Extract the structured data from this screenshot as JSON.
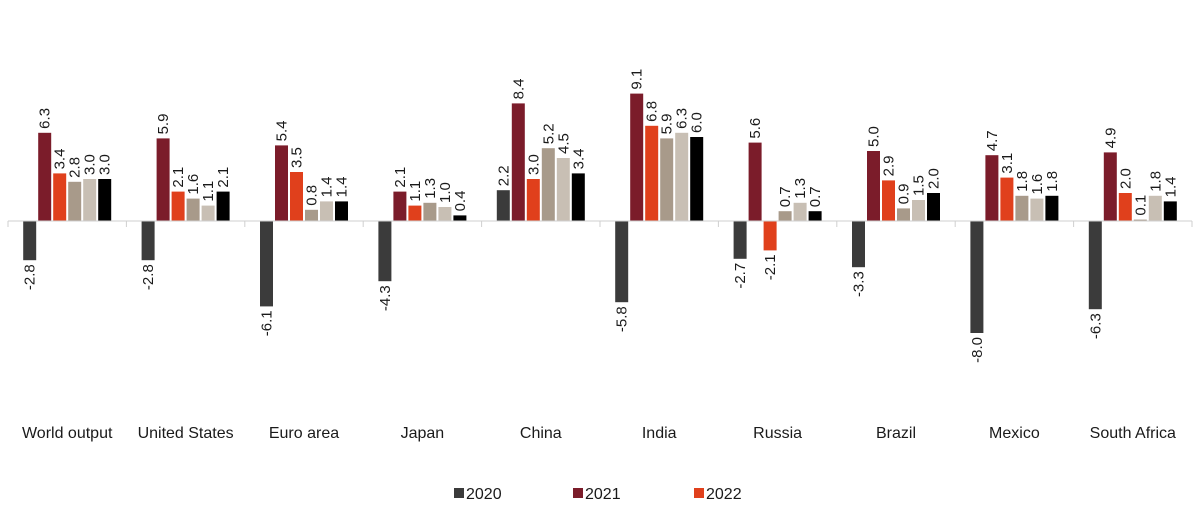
{
  "chart_data": {
    "type": "bar",
    "title": "",
    "xlabel": "",
    "ylabel": "",
    "ylim": [
      -8.5,
      9.5
    ],
    "grid": false,
    "legend_position": "bottom",
    "categories": [
      "World output",
      "United States",
      "Euro area",
      "Japan",
      "China",
      "India",
      "Russia",
      "Brazil",
      "Mexico",
      "South Africa"
    ],
    "series": [
      {
        "name": "2020",
        "color": "#3b3b3b",
        "values": [
          -2.8,
          -2.8,
          -6.1,
          -4.3,
          2.2,
          -5.8,
          -2.7,
          -3.3,
          -8.0,
          -6.3
        ]
      },
      {
        "name": "2021",
        "color": "#7b1c2a",
        "values": [
          6.3,
          5.9,
          5.4,
          2.1,
          8.4,
          9.1,
          5.6,
          5.0,
          4.7,
          4.9
        ]
      },
      {
        "name": "2022",
        "color": "#e0401c",
        "values": [
          3.4,
          2.1,
          3.5,
          1.1,
          3.0,
          6.8,
          -2.1,
          2.9,
          3.1,
          2.0
        ]
      },
      {
        "color": "#a89a8a",
        "values": [
          2.8,
          1.6,
          0.8,
          1.3,
          5.2,
          5.9,
          0.7,
          0.9,
          1.8,
          0.1
        ]
      },
      {
        "color": "#c8bfb4",
        "values": [
          3.0,
          1.1,
          1.4,
          1.0,
          4.5,
          6.3,
          1.3,
          1.5,
          1.6,
          1.8
        ]
      },
      {
        "color": "#000000",
        "values": [
          3.0,
          2.1,
          1.4,
          0.4,
          3.4,
          6.0,
          0.7,
          2.0,
          1.8,
          1.4
        ]
      }
    ],
    "data_labels": [
      [
        "-2.8",
        "6.3",
        "3.4",
        "2.8",
        "3.0",
        "3.0"
      ],
      [
        "-2.8",
        "5.9",
        "2.1",
        "1.6",
        "1.1",
        "2.1"
      ],
      [
        "-6.1",
        "5.4",
        "3.5",
        "0.8",
        "1.4",
        "1.4"
      ],
      [
        "-4.3",
        "2.1",
        "1.1",
        "1.3",
        "1.0",
        "0.4"
      ],
      [
        "2.2",
        "8.4",
        "3.0",
        "5.2",
        "4.5",
        "3.4"
      ],
      [
        "-5.8",
        "9.1",
        "6.8",
        "5.9",
        "6.3",
        "6.0"
      ],
      [
        "-2.7",
        "5.6",
        "-2.1",
        "0.7",
        "1.3",
        "0.7"
      ],
      [
        "-3.3",
        "5.0",
        "2.9",
        "0.9",
        "1.5",
        "2.0"
      ],
      [
        "-8.0",
        "4.7",
        "3.1",
        "1.8",
        "1.6",
        "1.8"
      ],
      [
        "-6.3",
        "4.9",
        "2.0",
        "0.1",
        "1.8",
        "1.4"
      ]
    ]
  }
}
